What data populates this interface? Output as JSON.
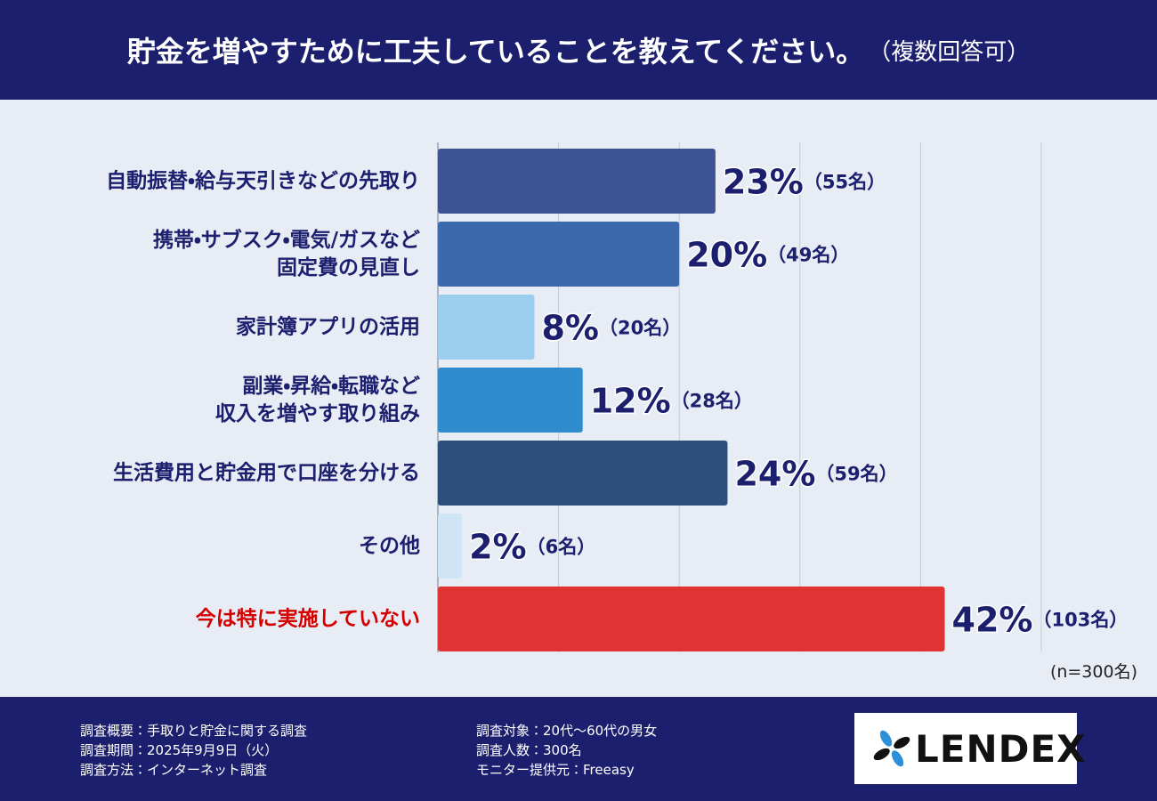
{
  "chart_data": {
    "type": "bar",
    "orientation": "horizontal",
    "title": "貯金を増やすために工夫していることを教えてください。",
    "subtitle": "（複数回答可）",
    "categories": [
      "自動振替・給与天引きなどの先取り",
      "携帯・サブスク・電気/ガスなど\n固定費の見直し",
      "家計簿アプリの活用",
      "副業・昇給・転職など\n収入を増やす取り組み",
      "生活費用と貯金用で口座を分ける",
      "その他",
      "今は特に実施していない"
    ],
    "values": [
      23,
      20,
      8,
      12,
      24,
      2,
      42
    ],
    "value_labels": [
      "23%",
      "20%",
      "8%",
      "12%",
      "24%",
      "2%",
      "42%"
    ],
    "count_labels": [
      "（55名）",
      "（49名）",
      "（20名）",
      "（28名）",
      "（59名）",
      "（6名）",
      "（103名）"
    ],
    "colors": [
      "#3d5494",
      "#3a6aad",
      "#9bcdee",
      "#2f8ccc",
      "#2e4f7c",
      "#cfe5f5",
      "#e03434"
    ],
    "category_colors": [
      "#1c1f6e",
      "#1c1f6e",
      "#1c1f6e",
      "#1c1f6e",
      "#1c1f6e",
      "#1c1f6e",
      "#d40000"
    ],
    "xlim": [
      0,
      50
    ],
    "xticks": [
      0,
      10,
      20,
      30,
      40,
      50
    ],
    "grid": true,
    "note": "(n=300名)"
  },
  "footer": {
    "items": [
      "調査概要：手取りと貯金に関する調査",
      "調査期間：2025年9月9日（火）",
      "調査方法：インターネット調査",
      "調査対象：20代〜60代の男女",
      "調査人数：300名",
      "モニター提供元：Freeasy"
    ],
    "logo": "LENDEX"
  }
}
